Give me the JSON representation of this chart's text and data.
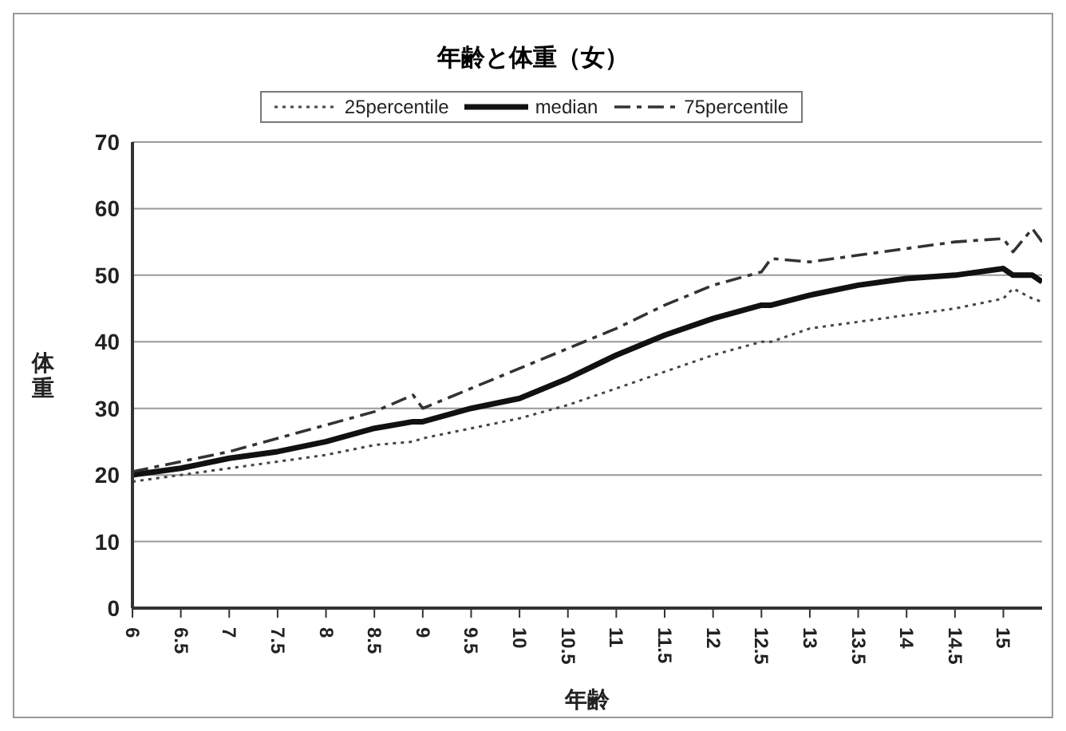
{
  "chart_data": {
    "type": "line",
    "title": "年齢と体重（女）",
    "xlabel": "年齢",
    "ylabel": "体重",
    "x": [
      6,
      6.5,
      7,
      7.5,
      8,
      8.5,
      8.9,
      9,
      9.5,
      10,
      10.5,
      11,
      11.5,
      12,
      12.5,
      12.6,
      13,
      13.5,
      14,
      14.5,
      15,
      15.1,
      15.3,
      15.4
    ],
    "series": [
      {
        "name": "25percentile",
        "color": "#444444",
        "line_style": "dotted",
        "values": [
          19,
          20,
          21,
          22,
          23,
          24.5,
          25,
          25.5,
          27,
          28.5,
          30.5,
          33,
          35.5,
          38,
          40,
          40,
          42,
          43,
          44,
          45,
          46.5,
          48,
          46.5,
          46
        ]
      },
      {
        "name": "median",
        "color": "#111111",
        "line_style": "solid",
        "values": [
          20,
          21,
          22.5,
          23.5,
          25,
          27,
          28,
          28,
          30,
          31.5,
          34.5,
          38,
          41,
          43.5,
          45.5,
          45.5,
          47,
          48.5,
          49.5,
          50,
          51,
          50,
          50,
          49
        ]
      },
      {
        "name": "75percentile",
        "color": "#333333",
        "line_style": "dashed",
        "values": [
          20.5,
          22,
          23.5,
          25.5,
          27.5,
          29.5,
          32,
          30,
          33,
          36,
          39,
          42,
          45.5,
          48.5,
          50.5,
          52.5,
          52,
          53,
          54,
          55,
          55.5,
          53.5,
          57,
          55
        ]
      }
    ],
    "xlim": [
      6,
      15.4
    ],
    "xticks": [
      6,
      6.5,
      7,
      7.5,
      8,
      8.5,
      9,
      9.5,
      10,
      10.5,
      11,
      11.5,
      12,
      12.5,
      13,
      13.5,
      14,
      14.5,
      15
    ],
    "ylim": [
      0,
      70
    ],
    "yticks": [
      0,
      10,
      20,
      30,
      40,
      50,
      60,
      70
    ],
    "grid": "y",
    "legend": "top",
    "marker": "none"
  }
}
